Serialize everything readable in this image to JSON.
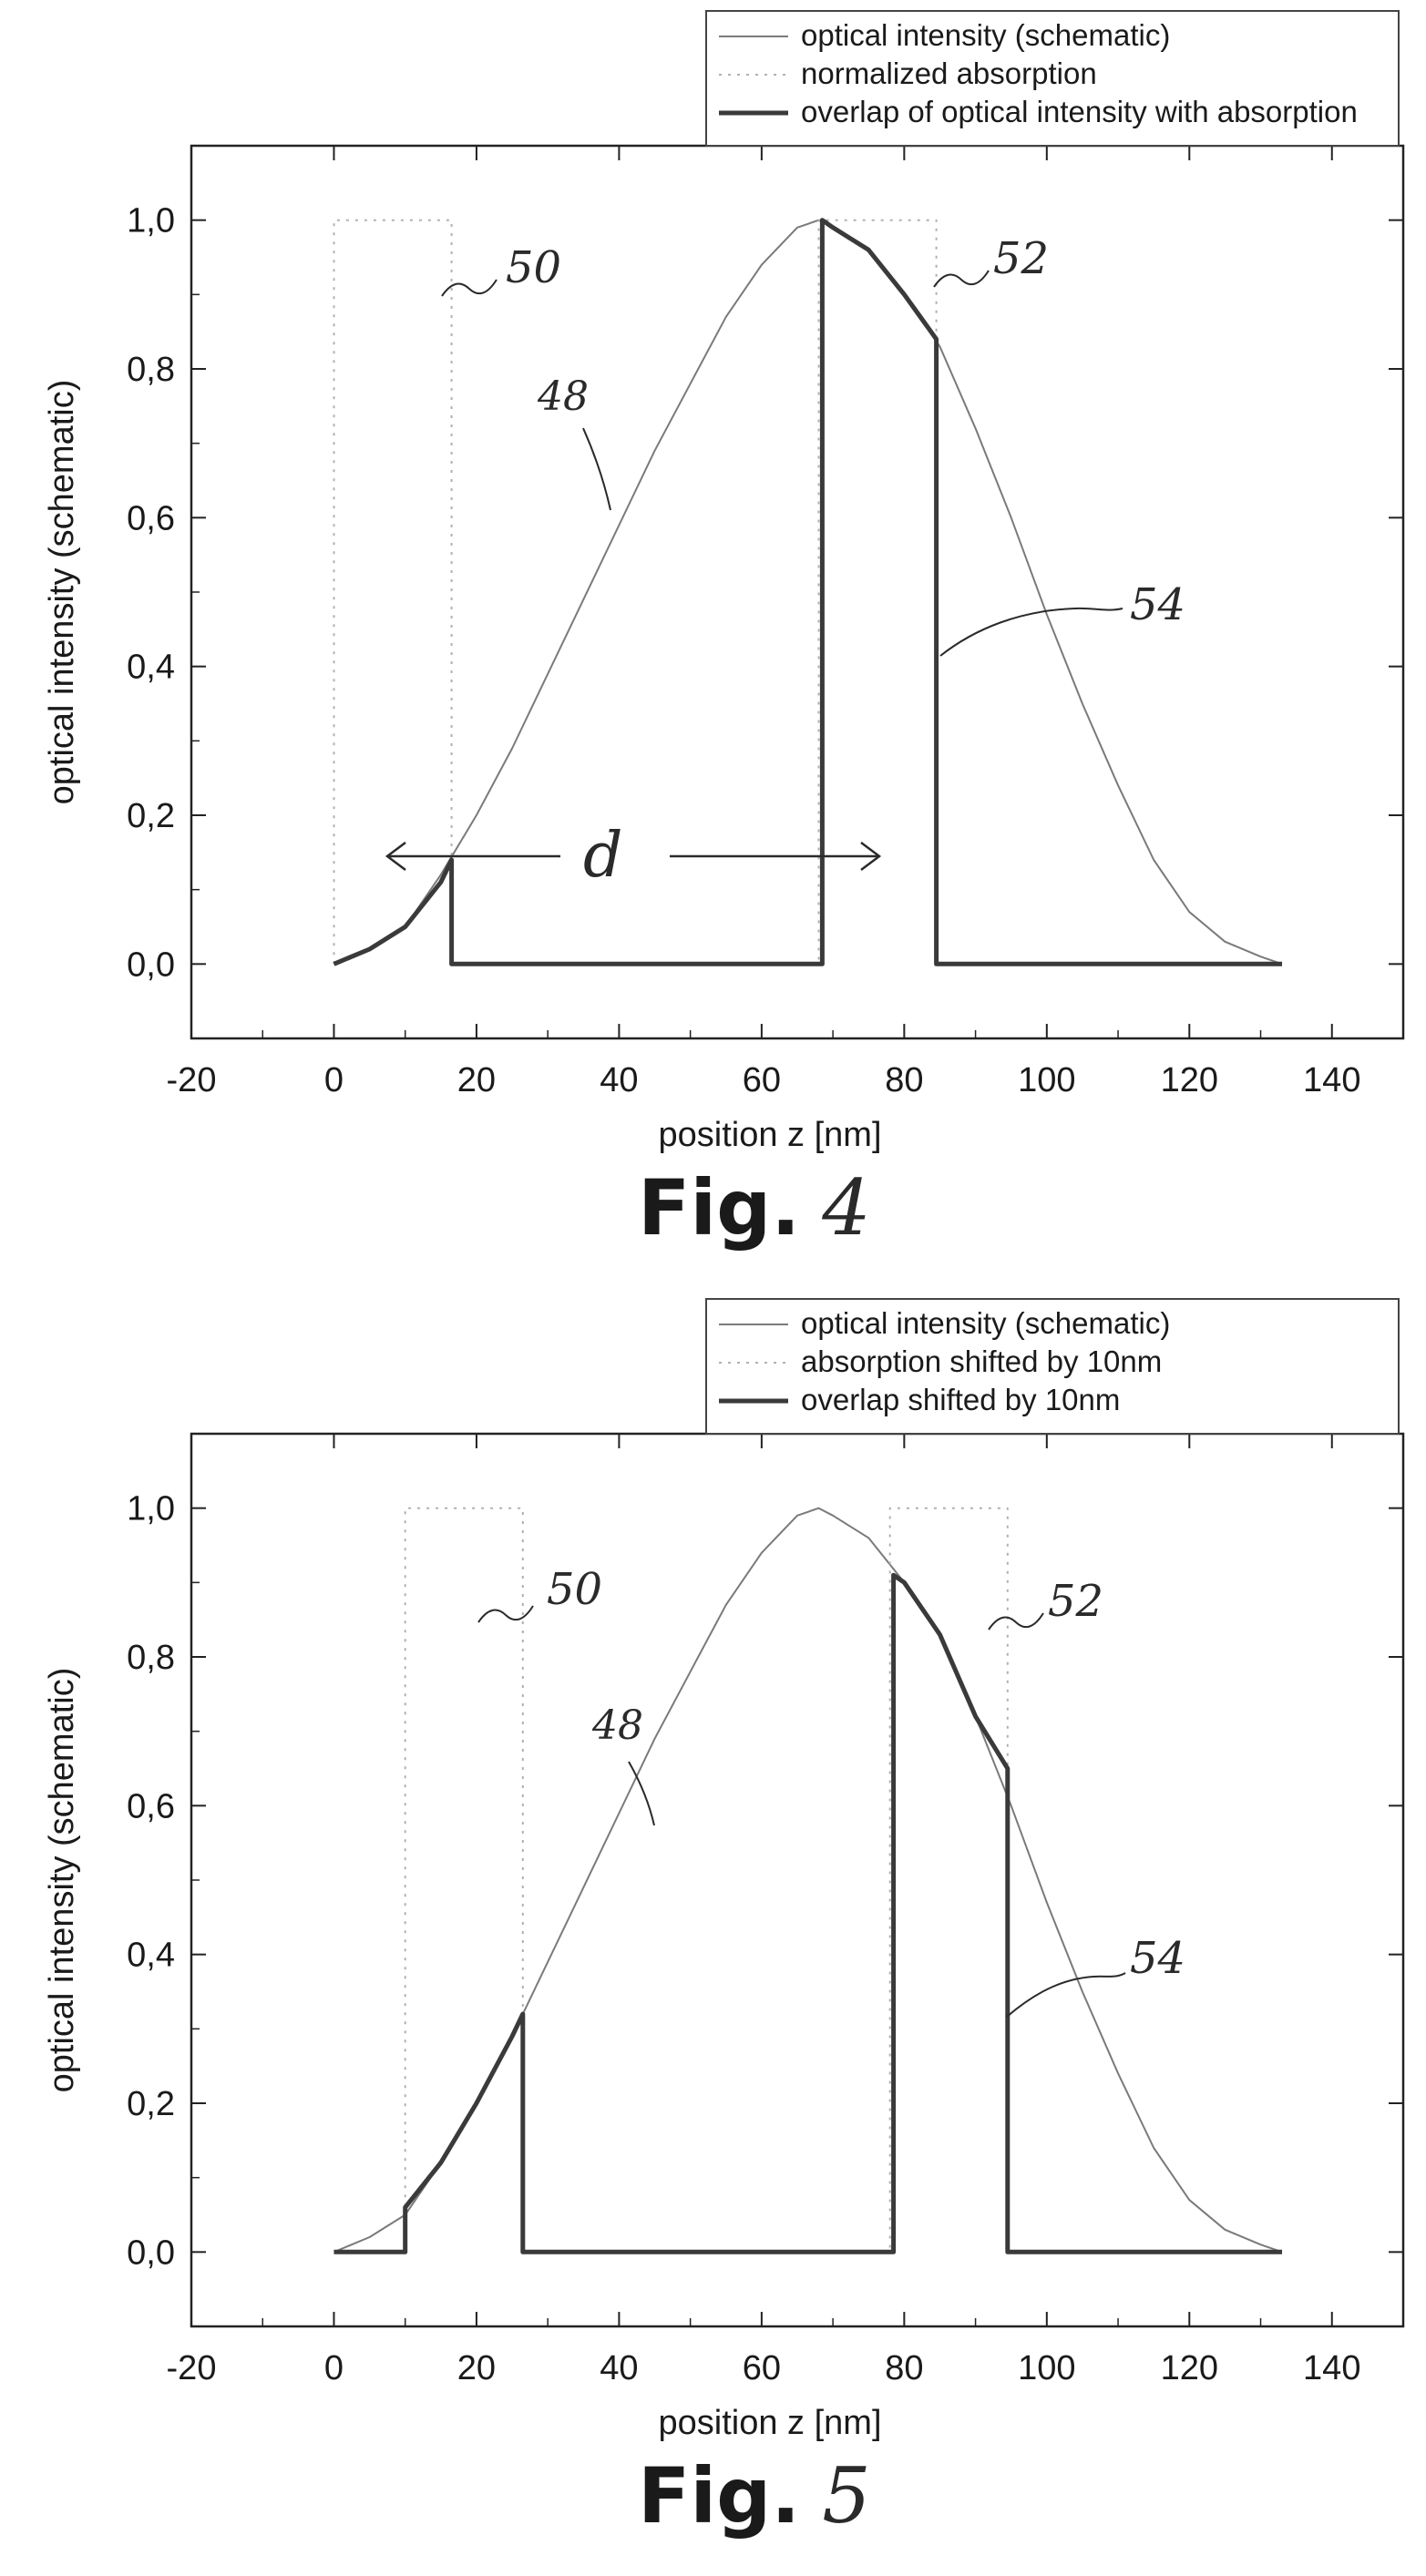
{
  "figures": [
    {
      "caption_prefix": "Fig.",
      "caption_number": "4",
      "handwritten_labels": {
        "curve": "48",
        "absorption_left": "50",
        "absorption_right": "52",
        "overlap": "54",
        "distance": "d"
      },
      "legend": {
        "entries": [
          "optical intensity (schematic)",
          "normalized absorption",
          "overlap of optical intensity with absorption"
        ]
      }
    },
    {
      "caption_prefix": "Fig.",
      "caption_number": "5",
      "handwritten_labels": {
        "curve": "48",
        "absorption_left": "50",
        "absorption_right": "52",
        "overlap": "54"
      },
      "legend": {
        "entries": [
          "optical intensity (schematic)",
          "absorption shifted by 10nm",
          "overlap shifted by 10nm"
        ]
      }
    }
  ],
  "chart_data": [
    {
      "type": "line",
      "xlabel": "position z [nm]",
      "ylabel": "optical intensity (schematic)",
      "xlim": [
        -20,
        150
      ],
      "ylim": [
        -0.1,
        1.1
      ],
      "xticks": [
        -20,
        0,
        20,
        40,
        60,
        80,
        100,
        120,
        140
      ],
      "xtick_labels": [
        "-20",
        "0",
        "20",
        "40",
        "60",
        "80",
        "100",
        "120",
        "140"
      ],
      "yticks": [
        0.0,
        0.2,
        0.4,
        0.6,
        0.8,
        1.0
      ],
      "ytick_labels": [
        "0,0",
        "0,2",
        "0,4",
        "0,6",
        "0,8",
        "1,0"
      ],
      "grid": false,
      "legend_position": "top-right",
      "series": [
        {
          "name": "optical intensity (schematic)",
          "style": "thin",
          "color": "#7a7a7a",
          "x": [
            0,
            5,
            10,
            15,
            20,
            25,
            30,
            35,
            40,
            45,
            50,
            55,
            60,
            65,
            68,
            70,
            75,
            80,
            85,
            90,
            95,
            100,
            105,
            110,
            115,
            120,
            125,
            130,
            133
          ],
          "y": [
            0.0,
            0.02,
            0.05,
            0.12,
            0.2,
            0.29,
            0.39,
            0.49,
            0.59,
            0.69,
            0.78,
            0.87,
            0.94,
            0.99,
            1.0,
            0.99,
            0.96,
            0.9,
            0.83,
            0.72,
            0.6,
            0.47,
            0.35,
            0.24,
            0.14,
            0.07,
            0.03,
            0.01,
            0.0
          ]
        },
        {
          "name": "normalized absorption",
          "style": "dotted",
          "color": "#b0b0b0",
          "x": [
            0,
            0,
            16.5,
            16.5,
            16.5,
            68,
            68,
            84.5,
            84.5,
            84.5,
            133
          ],
          "y": [
            0.0,
            1.0,
            1.0,
            0.0,
            0.0,
            0.0,
            1.0,
            1.0,
            0.0,
            0.0,
            0.0
          ]
        },
        {
          "name": "overlap of optical intensity with absorption",
          "style": "thick",
          "color": "#3a3a3a",
          "x": [
            0,
            5,
            10,
            15,
            16.5,
            16.5,
            68.5,
            68.5,
            70,
            75,
            80,
            84.5,
            84.5,
            133
          ],
          "y": [
            0.0,
            0.02,
            0.05,
            0.11,
            0.14,
            0.0,
            0.0,
            1.0,
            0.99,
            0.96,
            0.9,
            0.84,
            0.0,
            0.0
          ]
        }
      ]
    },
    {
      "type": "line",
      "xlabel": "position z [nm]",
      "ylabel": "optical intensity (schematic)",
      "xlim": [
        -20,
        150
      ],
      "ylim": [
        -0.1,
        1.1
      ],
      "xticks": [
        -20,
        0,
        20,
        40,
        60,
        80,
        100,
        120,
        140
      ],
      "xtick_labels": [
        "-20",
        "0",
        "20",
        "40",
        "60",
        "80",
        "100",
        "120",
        "140"
      ],
      "yticks": [
        0.0,
        0.2,
        0.4,
        0.6,
        0.8,
        1.0
      ],
      "ytick_labels": [
        "0,0",
        "0,2",
        "0,4",
        "0,6",
        "0,8",
        "1,0"
      ],
      "grid": false,
      "legend_position": "top-right",
      "series": [
        {
          "name": "optical intensity (schematic)",
          "style": "thin",
          "color": "#7a7a7a",
          "x": [
            0,
            5,
            10,
            15,
            20,
            25,
            30,
            35,
            40,
            45,
            50,
            55,
            60,
            65,
            68,
            70,
            75,
            80,
            85,
            90,
            95,
            100,
            105,
            110,
            115,
            120,
            125,
            130,
            133
          ],
          "y": [
            0.0,
            0.02,
            0.05,
            0.12,
            0.2,
            0.29,
            0.39,
            0.49,
            0.59,
            0.69,
            0.78,
            0.87,
            0.94,
            0.99,
            1.0,
            0.99,
            0.96,
            0.9,
            0.83,
            0.72,
            0.6,
            0.47,
            0.35,
            0.24,
            0.14,
            0.07,
            0.03,
            0.01,
            0.0
          ]
        },
        {
          "name": "absorption shifted by 10nm",
          "style": "dotted",
          "color": "#b0b0b0",
          "x": [
            10,
            10,
            26.5,
            26.5,
            26.5,
            78,
            78,
            94.5,
            94.5
          ],
          "y": [
            0.0,
            1.0,
            1.0,
            0.0,
            0.0,
            0.0,
            1.0,
            1.0,
            0.0
          ]
        },
        {
          "name": "overlap shifted by 10nm",
          "style": "thick",
          "color": "#3a3a3a",
          "x": [
            0,
            10,
            10,
            15,
            20,
            25,
            26.5,
            26.5,
            78.5,
            78.5,
            80,
            85,
            90,
            94.5,
            94.5,
            133
          ],
          "y": [
            0.0,
            0.0,
            0.06,
            0.12,
            0.2,
            0.29,
            0.32,
            0.0,
            0.0,
            0.91,
            0.9,
            0.83,
            0.72,
            0.65,
            0.0,
            0.0
          ]
        }
      ]
    }
  ]
}
